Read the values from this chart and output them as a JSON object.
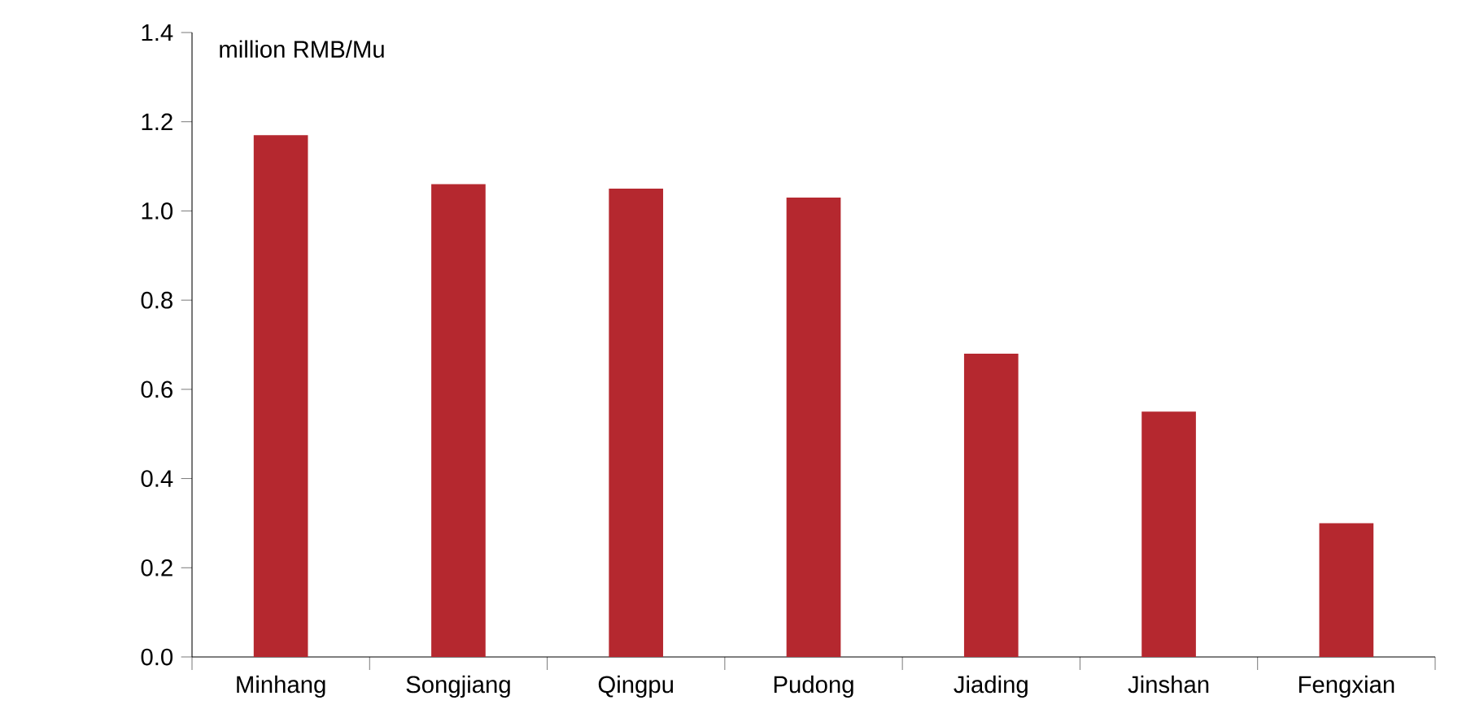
{
  "chart_data": {
    "type": "bar",
    "ylabel": "million RMB/Mu",
    "categories": [
      "Minhang",
      "Songjiang",
      "Qingpu",
      "Pudong",
      "Jiading",
      "Jinshan",
      "Fengxian"
    ],
    "values": [
      1.17,
      1.06,
      1.05,
      1.03,
      0.68,
      0.55,
      0.3
    ],
    "color": "#b5282f",
    "ylim": [
      0,
      1.4
    ],
    "yticks": [
      {
        "value": 0,
        "label": "0.0"
      },
      {
        "value": 0.2,
        "label": "0.2"
      },
      {
        "value": 0.4,
        "label": "0.4"
      },
      {
        "value": 0.6,
        "label": "0.6"
      },
      {
        "value": 0.8,
        "label": "0.8"
      },
      {
        "value": 1.0,
        "label": "1.0"
      },
      {
        "value": 1.2,
        "label": "1.2"
      },
      {
        "value": 1.4,
        "label": "1.4"
      }
    ],
    "grid": false
  }
}
